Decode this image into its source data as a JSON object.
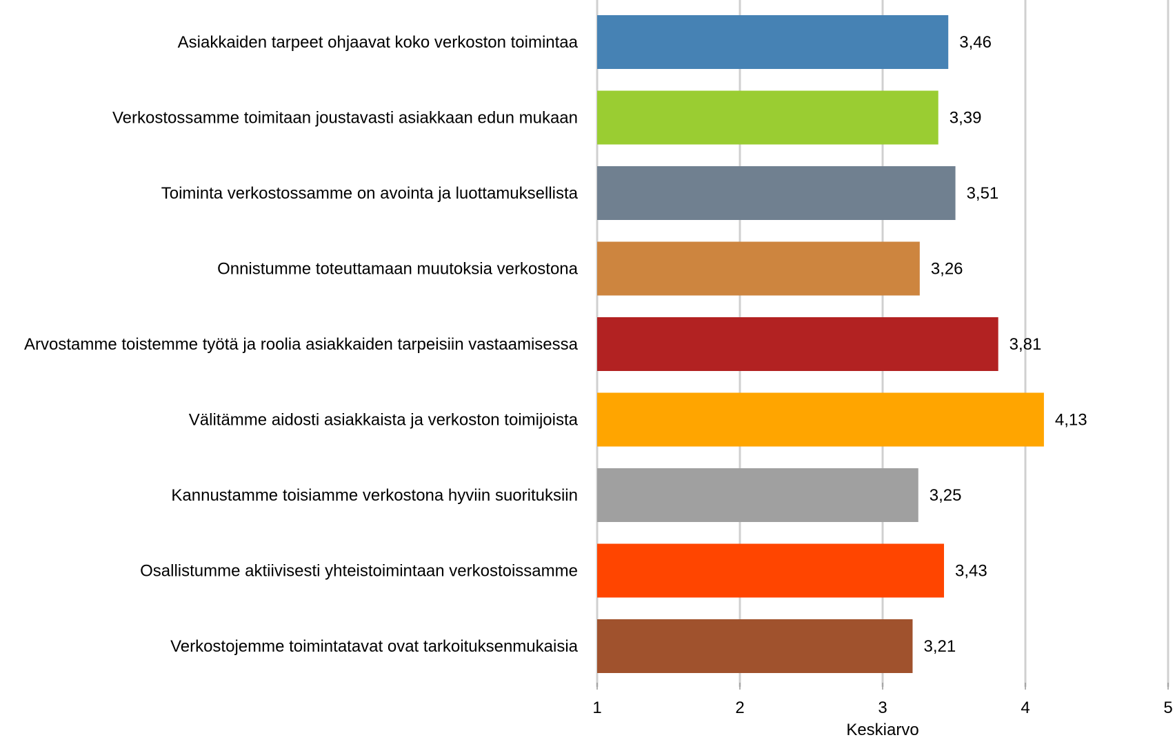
{
  "chart_data": {
    "type": "bar",
    "orientation": "horizontal",
    "categories": [
      "Asiakkaiden tarpeet ohjaavat koko verkoston toimintaa",
      "Verkostossamme toimitaan joustavasti asiakkaan edun mukaan",
      "Toiminta verkostossamme on avointa ja luottamuksellista",
      "Onnistumme toteuttamaan muutoksia verkostona",
      "Arvostamme toistemme työtä ja roolia asiakkaiden tarpeisiin vastaamisessa",
      "Välitämme aidosti asiakkaista ja verkoston toimijoista",
      "Kannustamme toisiamme verkostona hyviin suorituksiin",
      "Osallistumme aktiivisesti yhteistoimintaan verkostoissamme",
      "Verkostojemme toimintatavat ovat tarkoituksenmukaisia"
    ],
    "values": [
      3.46,
      3.39,
      3.51,
      3.26,
      3.81,
      4.13,
      3.25,
      3.43,
      3.21
    ],
    "value_labels": [
      "3,46",
      "3,39",
      "3,51",
      "3,26",
      "3,81",
      "4,13",
      "3,25",
      "3,43",
      "3,21"
    ],
    "colors": [
      "#4682b4",
      "#9acd32",
      "#708090",
      "#cd853f",
      "#b22222",
      "#ffa500",
      "#a0a0a0",
      "#ff4500",
      "#a0522d"
    ],
    "xlabel": "Keskiarvo",
    "xlim": [
      1,
      5
    ],
    "xticks": [
      1,
      2,
      3,
      4,
      5
    ],
    "xtick_labels": [
      "1",
      "2",
      "3",
      "4",
      "5"
    ],
    "grid": true
  }
}
